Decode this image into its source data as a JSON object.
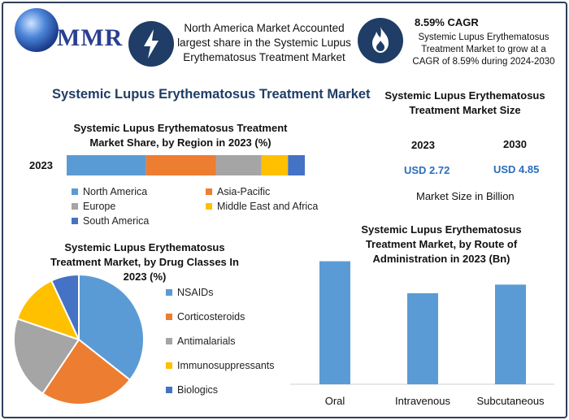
{
  "brand": {
    "logo_text": "MMR"
  },
  "header": {
    "insight_text": "North America Market Accounted largest share in the Systemic Lupus Erythematosus Treatment Market",
    "cagr_title": "8.59% CAGR",
    "cagr_text": "Systemic Lupus Erythematosus Treatment Market to grow at a CAGR of 8.59% during 2024-2030",
    "insight_icon": "lightning-icon",
    "cagr_icon": "flame-icon"
  },
  "main_title": "Systemic Lupus Erythematosus Treatment Market",
  "market_size": {
    "title": "Systemic Lupus Erythematosus Treatment Market Size",
    "year_a": "2023",
    "year_b": "2030",
    "value_a": "USD 2.72",
    "value_b": "USD 4.85",
    "unit_text": "Market Size in Billion"
  },
  "colors": {
    "blue": "#5b9bd5",
    "orange": "#ed7d31",
    "gray": "#a5a5a5",
    "yellow": "#ffc000",
    "darkblue": "#4472c4",
    "frame": "#2f3f5a",
    "title": "#1f3d66"
  },
  "chart_data": [
    {
      "type": "bar",
      "orientation": "horizontal-stacked",
      "title": "Systemic Lupus Erythematosus Treatment Market Share, by Region in 2023 (%)",
      "categories": [
        "2023"
      ],
      "series": [
        {
          "name": "North America",
          "values": [
            33
          ]
        },
        {
          "name": "Asia-Pacific",
          "values": [
            29
          ]
        },
        {
          "name": "Europe",
          "values": [
            19
          ]
        },
        {
          "name": "Middle East and Africa",
          "values": [
            11
          ]
        },
        {
          "name": "South America",
          "values": [
            7
          ]
        }
      ],
      "xlim": [
        0,
        100
      ],
      "grid": false,
      "legend": "bottom"
    },
    {
      "type": "pie",
      "title": "Systemic Lupus Erythematosus Treatment Market, by Drug Classes In 2023 (%)",
      "labels": [
        "NSAIDs",
        "Corticosteroids",
        "Antimalarials",
        "Immunosuppressants",
        "Biologics"
      ],
      "values": [
        36,
        24,
        21,
        13,
        7
      ],
      "legend": "right"
    },
    {
      "type": "bar",
      "title": "Systemic Lupus Erythematosus Treatment Market, by Route of Administration in 2023 (Bn)",
      "categories": [
        "Oral",
        "Intravenous",
        "Subcutaneous"
      ],
      "values": [
        1.0,
        0.74,
        0.81
      ],
      "ylim": [
        0,
        1.05
      ],
      "grid": false,
      "legend": "none"
    }
  ]
}
